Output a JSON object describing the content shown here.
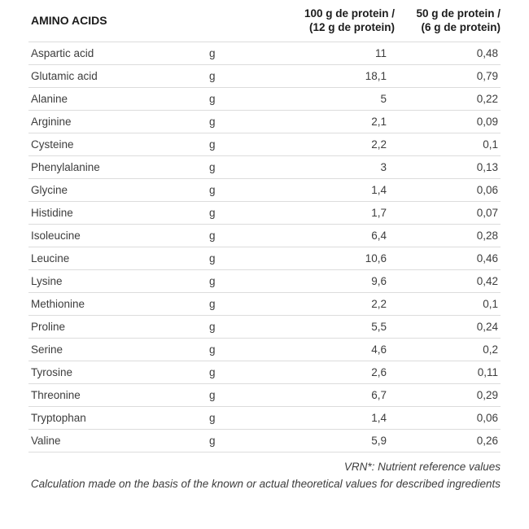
{
  "table": {
    "header": {
      "title": "AMINO ACIDS",
      "col_100g": {
        "line1": "100 g de protein /",
        "line2": "(12 g de protein)"
      },
      "col_50g": {
        "line1": "50 g de protein /",
        "line2": "(6 g de protein)"
      }
    },
    "rows": [
      {
        "name": "Aspartic acid",
        "unit": "g",
        "per_100g": "11",
        "per_50g": "0,48"
      },
      {
        "name": "Glutamic acid",
        "unit": "g",
        "per_100g": "18,1",
        "per_50g": "0,79"
      },
      {
        "name": "Alanine",
        "unit": "g",
        "per_100g": "5",
        "per_50g": "0,22"
      },
      {
        "name": "Arginine",
        "unit": "g",
        "per_100g": "2,1",
        "per_50g": "0,09"
      },
      {
        "name": "Cysteine",
        "unit": "g",
        "per_100g": "2,2",
        "per_50g": "0,1"
      },
      {
        "name": "Phenylalanine",
        "unit": "g",
        "per_100g": "3",
        "per_50g": "0,13"
      },
      {
        "name": "Glycine",
        "unit": "g",
        "per_100g": "1,4",
        "per_50g": "0,06"
      },
      {
        "name": "Histidine",
        "unit": "g",
        "per_100g": "1,7",
        "per_50g": "0,07"
      },
      {
        "name": "Isoleucine",
        "unit": "g",
        "per_100g": "6,4",
        "per_50g": "0,28"
      },
      {
        "name": "Leucine",
        "unit": "g",
        "per_100g": "10,6",
        "per_50g": "0,46"
      },
      {
        "name": "Lysine",
        "unit": "g",
        "per_100g": "9,6",
        "per_50g": "0,42"
      },
      {
        "name": "Methionine",
        "unit": "g",
        "per_100g": "2,2",
        "per_50g": "0,1"
      },
      {
        "name": "Proline",
        "unit": "g",
        "per_100g": "5,5",
        "per_50g": "0,24"
      },
      {
        "name": "Serine",
        "unit": "g",
        "per_100g": "4,6",
        "per_50g": "0,2"
      },
      {
        "name": "Tyrosine",
        "unit": "g",
        "per_100g": "2,6",
        "per_50g": "0,11"
      },
      {
        "name": "Threonine",
        "unit": "g",
        "per_100g": "6,7",
        "per_50g": "0,29"
      },
      {
        "name": "Tryptophan",
        "unit": "g",
        "per_100g": "1,4",
        "per_50g": "0,06"
      },
      {
        "name": "Valine",
        "unit": "g",
        "per_100g": "5,9",
        "per_50g": "0,26"
      }
    ]
  },
  "footnote": {
    "line1": "VRN*: Nutrient reference values",
    "line2": "Calculation made on the basis of the known or actual theoretical values for described ingredients"
  },
  "colors": {
    "background": "#ffffff",
    "header_text": "#1c1c1c",
    "body_text": "#3d3d3d",
    "divider": "#dcdcdc"
  }
}
